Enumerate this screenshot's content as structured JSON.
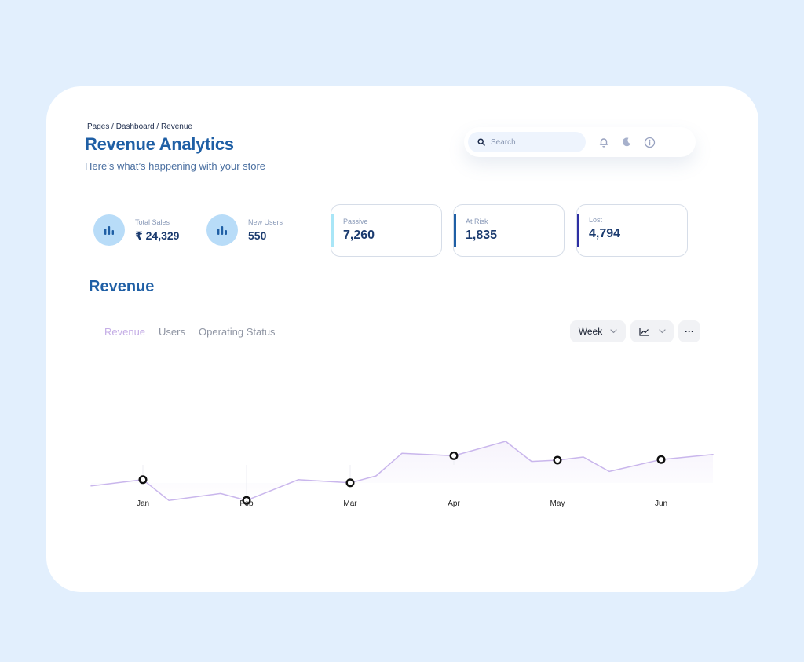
{
  "breadcrumb": "Pages / Dashboard / Revenue",
  "title": "Revenue Analytics",
  "subtitle": "Here’s what’s happening with your store",
  "search": {
    "placeholder": "Search"
  },
  "stats": [
    {
      "label": "Total Sales",
      "value": "₹ 24,329"
    },
    {
      "label": "New Users",
      "value": "550"
    }
  ],
  "boxes": [
    {
      "label": "Passive",
      "value": "7,260",
      "accent": "#a9e6f7"
    },
    {
      "label": "At Risk",
      "value": "1,835",
      "accent": "#1f5fa5"
    },
    {
      "label": "Lost",
      "value": "4,794",
      "accent": "#2d2fa3"
    }
  ],
  "section_title": "Revenue",
  "tabs": [
    {
      "label": "Revenue",
      "active": true
    },
    {
      "label": "Users",
      "active": false
    },
    {
      "label": "Operating Status",
      "active": false
    }
  ],
  "controls": {
    "period": "Week",
    "more": "···"
  },
  "colors": {
    "line": "#c9b6ec",
    "marker": "#111111",
    "title": "#1f5fa5"
  },
  "chart_data": {
    "type": "line",
    "categories": [
      "Jan",
      "Feb",
      "Mar",
      "Apr",
      "May",
      "Jun"
    ],
    "marked_values": [
      59,
      26,
      54,
      97,
      90,
      91
    ],
    "path": [
      {
        "x": -0.5,
        "y": 49
      },
      {
        "x": 0,
        "y": 59
      },
      {
        "x": 0.25,
        "y": 26
      },
      {
        "x": 0.75,
        "y": 37
      },
      {
        "x": 1,
        "y": 26
      },
      {
        "x": 1.5,
        "y": 59
      },
      {
        "x": 2,
        "y": 54
      },
      {
        "x": 2.25,
        "y": 65
      },
      {
        "x": 2.5,
        "y": 101
      },
      {
        "x": 3,
        "y": 97
      },
      {
        "x": 3.5,
        "y": 120
      },
      {
        "x": 3.75,
        "y": 88
      },
      {
        "x": 4,
        "y": 90
      },
      {
        "x": 4.25,
        "y": 95
      },
      {
        "x": 4.5,
        "y": 72
      },
      {
        "x": 5,
        "y": 91
      },
      {
        "x": 5.5,
        "y": 99
      }
    ],
    "ylim": [
      0,
      130
    ],
    "grid": false,
    "legend": "none"
  }
}
